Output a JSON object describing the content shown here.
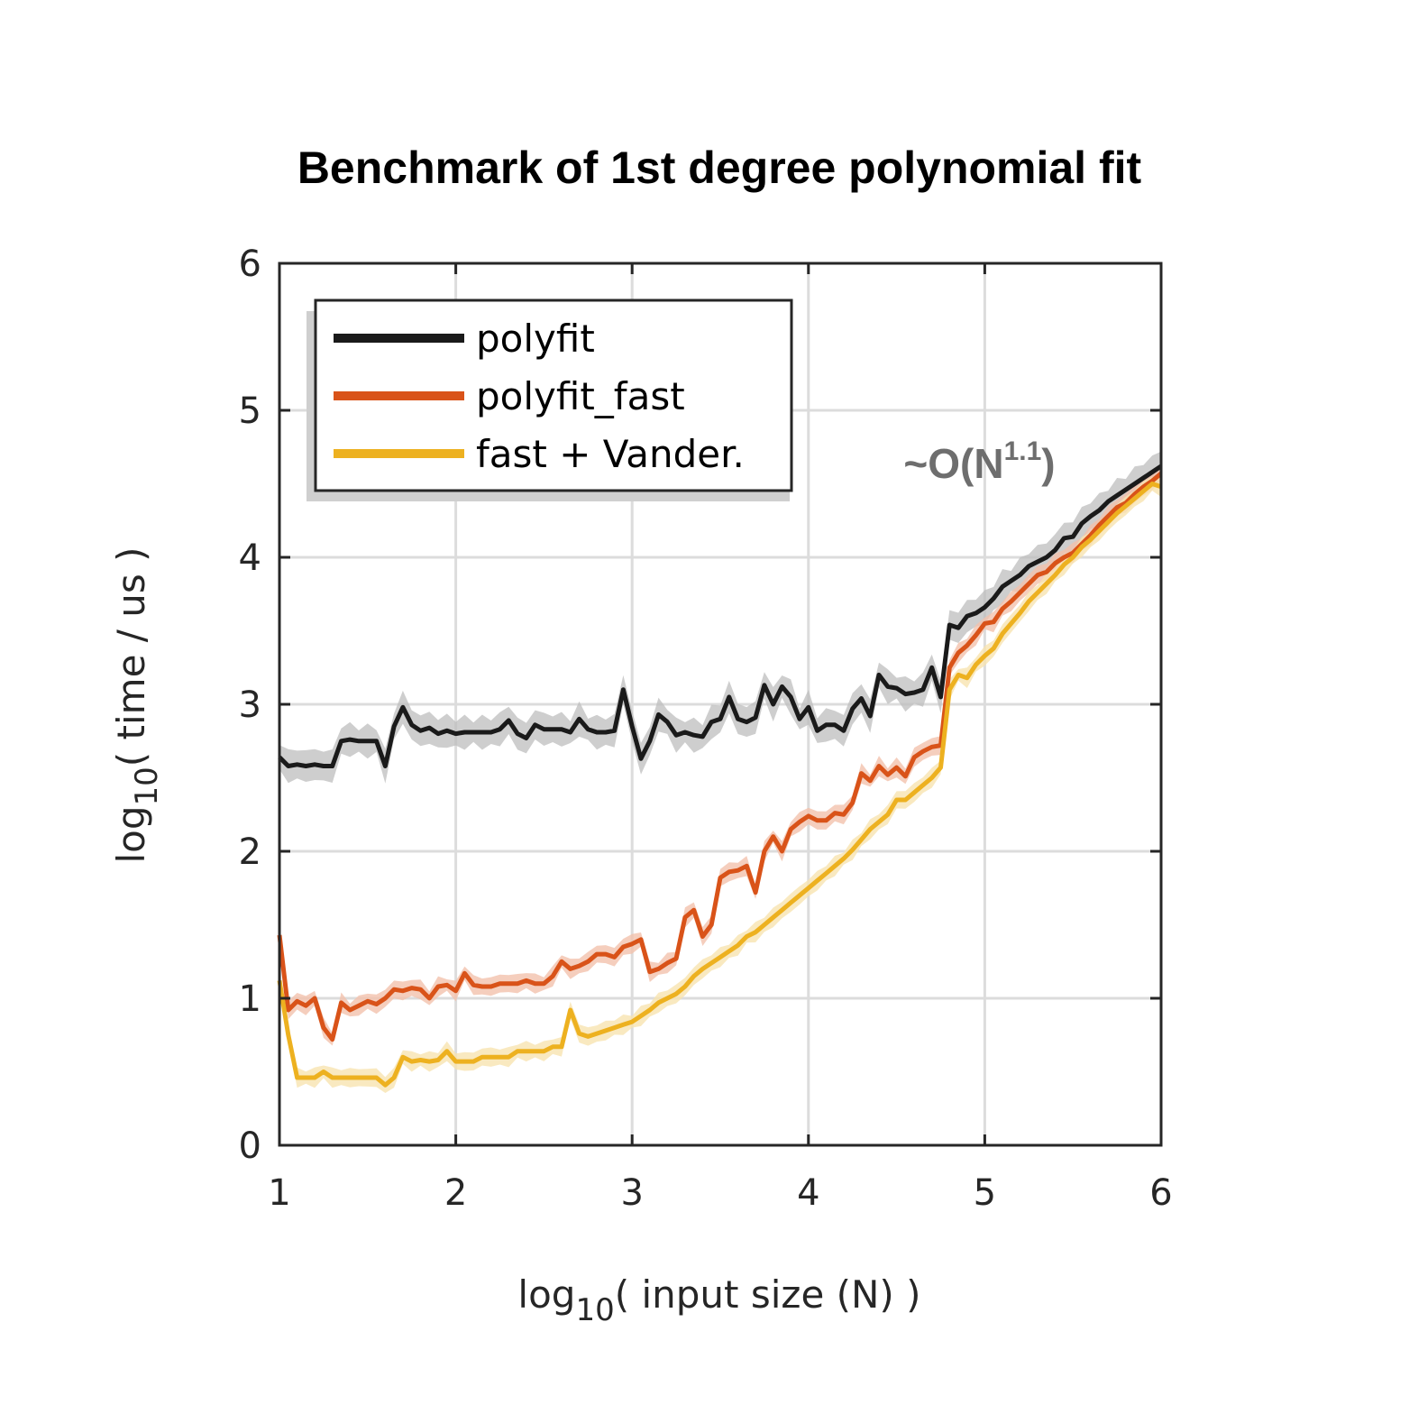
{
  "chart_data": {
    "type": "line",
    "title": "Benchmark of 1st degree polynomial fit",
    "xlabel": {
      "prefix": "log",
      "sub": "10",
      "suffix": "( input size (N) )"
    },
    "ylabel": {
      "prefix": "log",
      "sub": "10",
      "suffix": "( time / us )"
    },
    "xlim": [
      1,
      6
    ],
    "ylim": [
      0,
      6
    ],
    "xticks": [
      "1",
      "2",
      "3",
      "4",
      "5",
      "6"
    ],
    "yticks": [
      "0",
      "1",
      "2",
      "3",
      "4",
      "5",
      "6"
    ],
    "grid": true,
    "legend_position": "top-left",
    "annotation": {
      "base": "~O(N",
      "sup": "1.1",
      "close": ")",
      "at": [
        5.0,
        4.6
      ]
    },
    "series": [
      {
        "name": "polyfit",
        "color": "#1a1a1a",
        "band_color": "#bdbdbd",
        "x": [
          1.0,
          1.05,
          1.1,
          1.15,
          1.2,
          1.25,
          1.3,
          1.35,
          1.4,
          1.45,
          1.5,
          1.55,
          1.6,
          1.65,
          1.7,
          1.75,
          1.8,
          1.85,
          1.9,
          1.95,
          2.0,
          2.05,
          2.1,
          2.15,
          2.2,
          2.25,
          2.3,
          2.35,
          2.4,
          2.45,
          2.5,
          2.55,
          2.6,
          2.65,
          2.7,
          2.75,
          2.8,
          2.85,
          2.9,
          2.95,
          3.0,
          3.05,
          3.1,
          3.15,
          3.2,
          3.25,
          3.3,
          3.35,
          3.4,
          3.45,
          3.5,
          3.55,
          3.6,
          3.65,
          3.7,
          3.75,
          3.8,
          3.85,
          3.9,
          3.95,
          4.0,
          4.05,
          4.1,
          4.15,
          4.2,
          4.25,
          4.3,
          4.35,
          4.4,
          4.45,
          4.5,
          4.55,
          4.6,
          4.65,
          4.7,
          4.75,
          4.8,
          4.85,
          4.9,
          4.95,
          5.0,
          5.05,
          5.1,
          5.15,
          5.2,
          5.25,
          5.3,
          5.35,
          5.4,
          5.45,
          5.5,
          5.55,
          5.6,
          5.65,
          5.7,
          5.75,
          5.8,
          5.85,
          5.9,
          5.95,
          6.0
        ],
        "y": [
          2.64,
          2.58,
          2.59,
          2.58,
          2.59,
          2.58,
          2.58,
          2.75,
          2.76,
          2.75,
          2.75,
          2.75,
          2.58,
          2.85,
          2.98,
          2.86,
          2.82,
          2.84,
          2.8,
          2.82,
          2.8,
          2.81,
          2.81,
          2.81,
          2.81,
          2.83,
          2.89,
          2.8,
          2.77,
          2.86,
          2.83,
          2.83,
          2.83,
          2.81,
          2.9,
          2.83,
          2.81,
          2.81,
          2.82,
          3.1,
          2.85,
          2.63,
          2.75,
          2.93,
          2.88,
          2.79,
          2.81,
          2.79,
          2.78,
          2.88,
          2.9,
          3.05,
          2.9,
          2.88,
          2.91,
          3.13,
          3.0,
          3.12,
          3.05,
          2.9,
          2.98,
          2.82,
          2.86,
          2.86,
          2.82,
          2.97,
          3.04,
          2.92,
          3.2,
          3.12,
          3.11,
          3.07,
          3.08,
          3.1,
          3.25,
          3.05,
          3.54,
          3.52,
          3.6,
          3.62,
          3.66,
          3.72,
          3.8,
          3.84,
          3.88,
          3.94,
          3.97,
          4.0,
          4.05,
          4.13,
          4.14,
          4.23,
          4.28,
          4.32,
          4.38,
          4.42,
          4.46,
          4.5,
          4.54,
          4.58,
          4.62
        ]
      },
      {
        "name": "polyfit_fast",
        "color": "#d95319",
        "band_color": "#f2c2ad",
        "x": [
          1.0,
          1.05,
          1.1,
          1.15,
          1.2,
          1.25,
          1.3,
          1.35,
          1.4,
          1.45,
          1.5,
          1.55,
          1.6,
          1.65,
          1.7,
          1.75,
          1.8,
          1.85,
          1.9,
          1.95,
          2.0,
          2.05,
          2.1,
          2.15,
          2.2,
          2.25,
          2.3,
          2.35,
          2.4,
          2.45,
          2.5,
          2.55,
          2.6,
          2.65,
          2.7,
          2.75,
          2.8,
          2.85,
          2.9,
          2.95,
          3.0,
          3.05,
          3.1,
          3.15,
          3.2,
          3.25,
          3.3,
          3.35,
          3.4,
          3.45,
          3.5,
          3.55,
          3.6,
          3.65,
          3.7,
          3.75,
          3.8,
          3.85,
          3.9,
          3.95,
          4.0,
          4.05,
          4.1,
          4.15,
          4.2,
          4.25,
          4.3,
          4.35,
          4.4,
          4.45,
          4.5,
          4.55,
          4.6,
          4.65,
          4.7,
          4.75,
          4.8,
          4.85,
          4.9,
          4.95,
          5.0,
          5.05,
          5.1,
          5.15,
          5.2,
          5.25,
          5.3,
          5.35,
          5.4,
          5.45,
          5.5,
          5.55,
          5.6,
          5.65,
          5.7,
          5.75,
          5.8,
          5.85,
          5.9,
          5.95,
          6.0
        ],
        "y": [
          1.43,
          0.92,
          0.98,
          0.95,
          1.0,
          0.8,
          0.72,
          0.97,
          0.92,
          0.95,
          0.98,
          0.96,
          1.0,
          1.06,
          1.05,
          1.07,
          1.06,
          1.0,
          1.08,
          1.09,
          1.05,
          1.17,
          1.09,
          1.08,
          1.08,
          1.1,
          1.1,
          1.1,
          1.12,
          1.1,
          1.1,
          1.15,
          1.25,
          1.2,
          1.22,
          1.25,
          1.3,
          1.3,
          1.28,
          1.35,
          1.37,
          1.4,
          1.18,
          1.2,
          1.24,
          1.27,
          1.55,
          1.6,
          1.42,
          1.5,
          1.82,
          1.86,
          1.87,
          1.9,
          1.72,
          2.0,
          2.1,
          2.0,
          2.15,
          2.2,
          2.24,
          2.21,
          2.21,
          2.26,
          2.25,
          2.33,
          2.53,
          2.48,
          2.58,
          2.52,
          2.57,
          2.51,
          2.64,
          2.68,
          2.71,
          2.72,
          3.25,
          3.35,
          3.4,
          3.47,
          3.55,
          3.56,
          3.65,
          3.7,
          3.76,
          3.82,
          3.88,
          3.9,
          3.96,
          4.0,
          4.03,
          4.09,
          4.15,
          4.22,
          4.28,
          4.34,
          4.37,
          4.43,
          4.48,
          4.52,
          4.57
        ]
      },
      {
        "name": "fast + Vander.",
        "color": "#edb120",
        "band_color": "#f8e4b0",
        "x": [
          1.0,
          1.05,
          1.1,
          1.15,
          1.2,
          1.25,
          1.3,
          1.35,
          1.4,
          1.45,
          1.5,
          1.55,
          1.6,
          1.65,
          1.7,
          1.75,
          1.8,
          1.85,
          1.9,
          1.95,
          2.0,
          2.05,
          2.1,
          2.15,
          2.2,
          2.25,
          2.3,
          2.35,
          2.4,
          2.45,
          2.5,
          2.55,
          2.6,
          2.65,
          2.7,
          2.75,
          2.8,
          2.85,
          2.9,
          2.95,
          3.0,
          3.05,
          3.1,
          3.15,
          3.2,
          3.25,
          3.3,
          3.35,
          3.4,
          3.45,
          3.5,
          3.55,
          3.6,
          3.65,
          3.7,
          3.75,
          3.8,
          3.85,
          3.9,
          3.95,
          4.0,
          4.05,
          4.1,
          4.15,
          4.2,
          4.25,
          4.3,
          4.35,
          4.4,
          4.45,
          4.5,
          4.55,
          4.6,
          4.65,
          4.7,
          4.75,
          4.8,
          4.85,
          4.9,
          4.95,
          5.0,
          5.05,
          5.1,
          5.15,
          5.2,
          5.25,
          5.3,
          5.35,
          5.4,
          5.45,
          5.5,
          5.55,
          5.6,
          5.65,
          5.7,
          5.75,
          5.8,
          5.85,
          5.9,
          5.95,
          6.0
        ],
        "y": [
          1.12,
          0.75,
          0.46,
          0.46,
          0.46,
          0.5,
          0.46,
          0.46,
          0.46,
          0.46,
          0.46,
          0.46,
          0.41,
          0.46,
          0.6,
          0.57,
          0.58,
          0.57,
          0.58,
          0.64,
          0.57,
          0.57,
          0.57,
          0.6,
          0.6,
          0.6,
          0.6,
          0.64,
          0.64,
          0.64,
          0.64,
          0.67,
          0.67,
          0.92,
          0.76,
          0.74,
          0.76,
          0.78,
          0.8,
          0.82,
          0.84,
          0.88,
          0.92,
          0.97,
          1.0,
          1.03,
          1.08,
          1.15,
          1.2,
          1.24,
          1.28,
          1.32,
          1.36,
          1.42,
          1.45,
          1.5,
          1.55,
          1.6,
          1.65,
          1.7,
          1.75,
          1.8,
          1.85,
          1.9,
          1.95,
          2.01,
          2.08,
          2.15,
          2.2,
          2.25,
          2.35,
          2.35,
          2.4,
          2.45,
          2.5,
          2.57,
          3.1,
          3.2,
          3.18,
          3.27,
          3.33,
          3.38,
          3.48,
          3.55,
          3.62,
          3.7,
          3.76,
          3.82,
          3.88,
          3.95,
          4.0,
          4.07,
          4.12,
          4.18,
          4.24,
          4.3,
          4.35,
          4.4,
          4.45,
          4.5,
          4.48
        ]
      }
    ]
  }
}
